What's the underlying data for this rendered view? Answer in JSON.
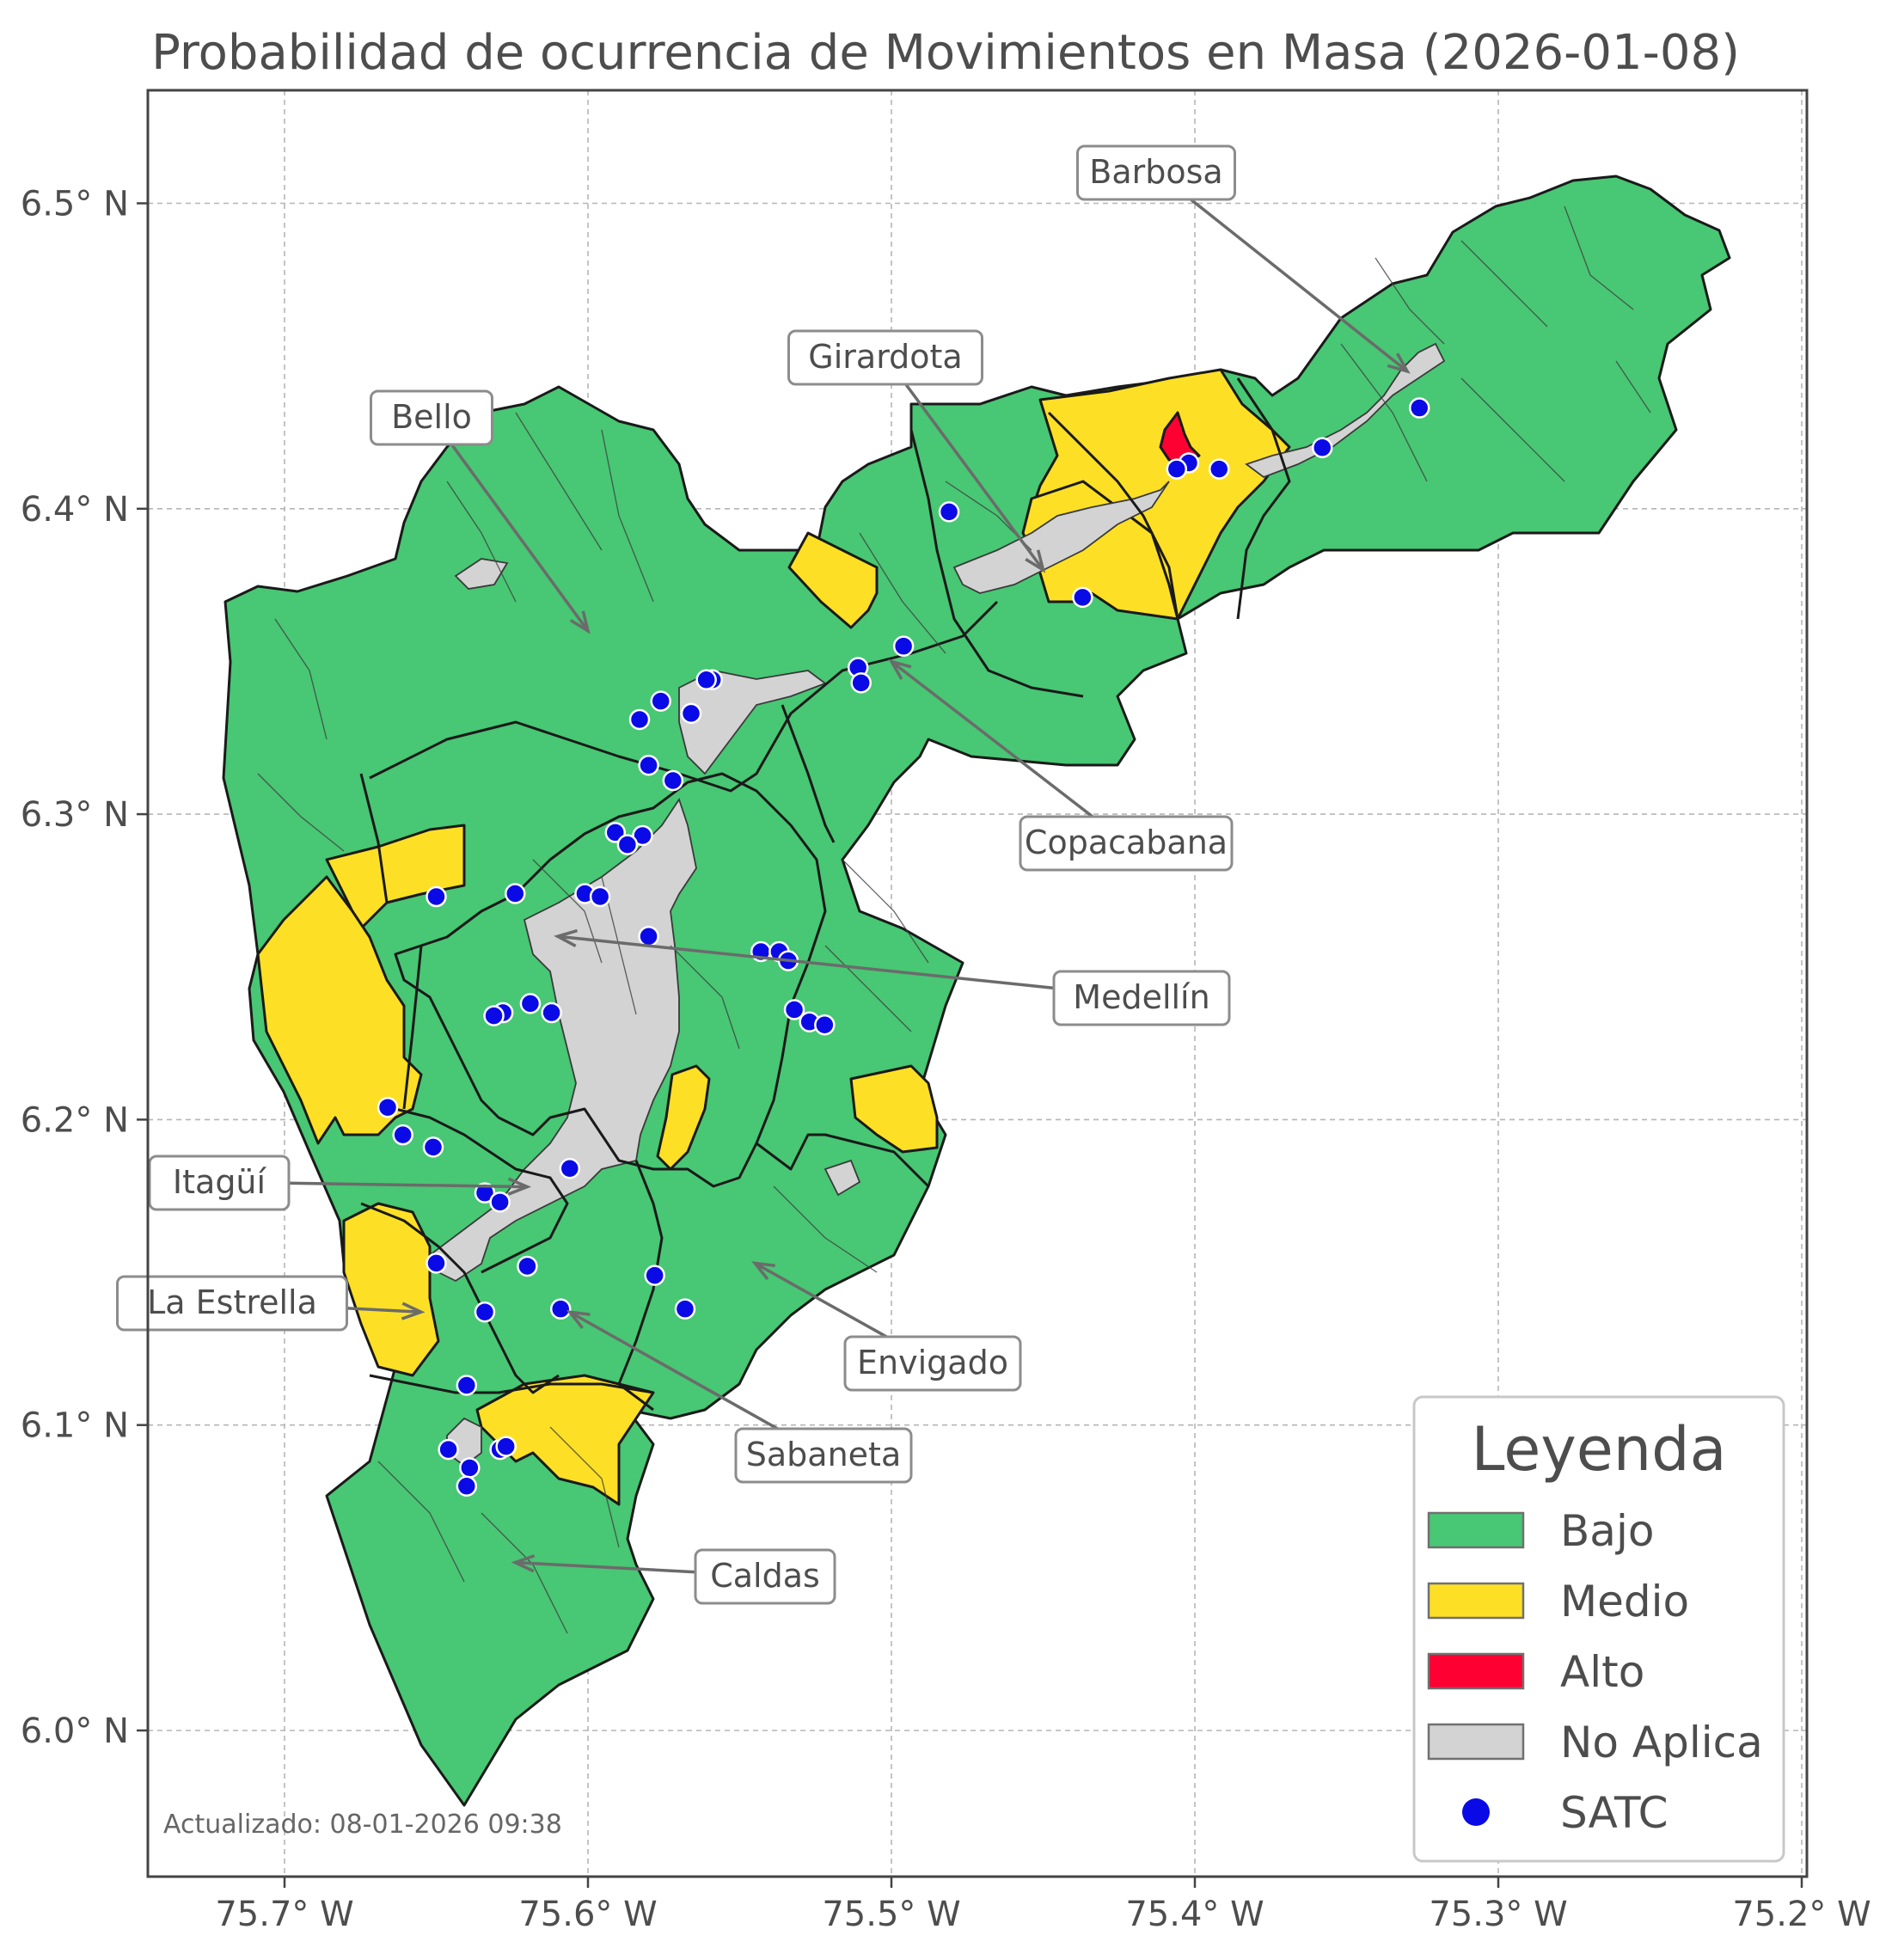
{
  "title": "Probabilidad de ocurrencia de Movimientos en Masa (2026-01-08)",
  "x_ticks": [
    {
      "value": -75.7,
      "label": "75.7° W"
    },
    {
      "value": -75.6,
      "label": "75.6° W"
    },
    {
      "value": -75.5,
      "label": "75.5° W"
    },
    {
      "value": -75.4,
      "label": "75.4° W"
    },
    {
      "value": -75.3,
      "label": "75.3° W"
    },
    {
      "value": -75.2,
      "label": "75.2° W"
    }
  ],
  "y_ticks": [
    {
      "value": 6.0,
      "label": "6.0° N"
    },
    {
      "value": 6.1,
      "label": "6.1° N"
    },
    {
      "value": 6.2,
      "label": "6.2° N"
    },
    {
      "value": 6.3,
      "label": "6.3° N"
    },
    {
      "value": 6.4,
      "label": "6.4° N"
    },
    {
      "value": 6.5,
      "label": "6.5° N"
    }
  ],
  "updated_stamp": "Actualizado: 08-01-2026 09:38",
  "legend": {
    "title": "Leyenda",
    "items": [
      {
        "label": "Bajo",
        "color": "#48c774",
        "kind": "patch"
      },
      {
        "label": "Medio",
        "color": "#fde025",
        "kind": "patch"
      },
      {
        "label": "Alto",
        "color": "#ff0033",
        "kind": "patch"
      },
      {
        "label": "No Aplica",
        "color": "#d3d3d3",
        "kind": "patch"
      },
      {
        "label": "SATC",
        "color": "#0a0ae6",
        "kind": "dot"
      }
    ]
  },
  "municipalities": [
    {
      "name": "Barbosa",
      "lon": -75.33,
      "lat": 6.445
    },
    {
      "name": "Girardota",
      "lon": -75.45,
      "lat": 6.38
    },
    {
      "name": "Bello",
      "lon": -75.6,
      "lat": 6.36
    },
    {
      "name": "Copacabana",
      "lon": -75.5,
      "lat": 6.35
    },
    {
      "name": "Medellín",
      "lon": -75.61,
      "lat": 6.26
    },
    {
      "name": "Itagüí",
      "lon": -75.62,
      "lat": 6.178
    },
    {
      "name": "Envigado",
      "lon": -75.545,
      "lat": 6.153
    },
    {
      "name": "La Estrella",
      "lon": -75.655,
      "lat": 6.137
    },
    {
      "name": "Sabaneta",
      "lon": -75.606,
      "lat": 6.137
    },
    {
      "name": "Caldas",
      "lon": -75.624,
      "lat": 6.055
    }
  ],
  "satc_stations": [
    [
      -75.326,
      6.433
    ],
    [
      -75.358,
      6.42
    ],
    [
      -75.392,
      6.413
    ],
    [
      -75.402,
      6.415
    ],
    [
      -75.406,
      6.413
    ],
    [
      -75.481,
      6.399
    ],
    [
      -75.437,
      6.371
    ],
    [
      -75.496,
      6.355
    ],
    [
      -75.511,
      6.348
    ],
    [
      -75.51,
      6.343
    ],
    [
      -75.559,
      6.344
    ],
    [
      -75.561,
      6.344
    ],
    [
      -75.566,
      6.333
    ],
    [
      -75.576,
      6.337
    ],
    [
      -75.583,
      6.331
    ],
    [
      -75.58,
      6.316
    ],
    [
      -75.572,
      6.311
    ],
    [
      -75.591,
      6.294
    ],
    [
      -75.582,
      6.293
    ],
    [
      -75.587,
      6.29
    ],
    [
      -75.65,
      6.273
    ],
    [
      -75.624,
      6.274
    ],
    [
      -75.601,
      6.274
    ],
    [
      -75.596,
      6.273
    ],
    [
      -75.58,
      6.26
    ],
    [
      -75.543,
      6.255
    ],
    [
      -75.537,
      6.255
    ],
    [
      -75.534,
      6.252
    ],
    [
      -75.532,
      6.236
    ],
    [
      -75.527,
      6.232
    ],
    [
      -75.522,
      6.231
    ],
    [
      -75.628,
      6.235
    ],
    [
      -75.631,
      6.234
    ],
    [
      -75.619,
      6.238
    ],
    [
      -75.612,
      6.235
    ],
    [
      -75.666,
      6.204
    ],
    [
      -75.661,
      6.195
    ],
    [
      -75.651,
      6.191
    ],
    [
      -75.606,
      6.184
    ],
    [
      -75.634,
      6.176
    ],
    [
      -75.629,
      6.173
    ],
    [
      -75.65,
      6.153
    ],
    [
      -75.62,
      6.152
    ],
    [
      -75.578,
      6.149
    ],
    [
      -75.568,
      6.138
    ],
    [
      -75.609,
      6.138
    ],
    [
      -75.634,
      6.137
    ],
    [
      -75.64,
      6.113
    ],
    [
      -75.646,
      6.092
    ],
    [
      -75.629,
      6.092
    ],
    [
      -75.627,
      6.093
    ],
    [
      -75.639,
      6.086
    ],
    [
      -75.64,
      6.08
    ]
  ]
}
